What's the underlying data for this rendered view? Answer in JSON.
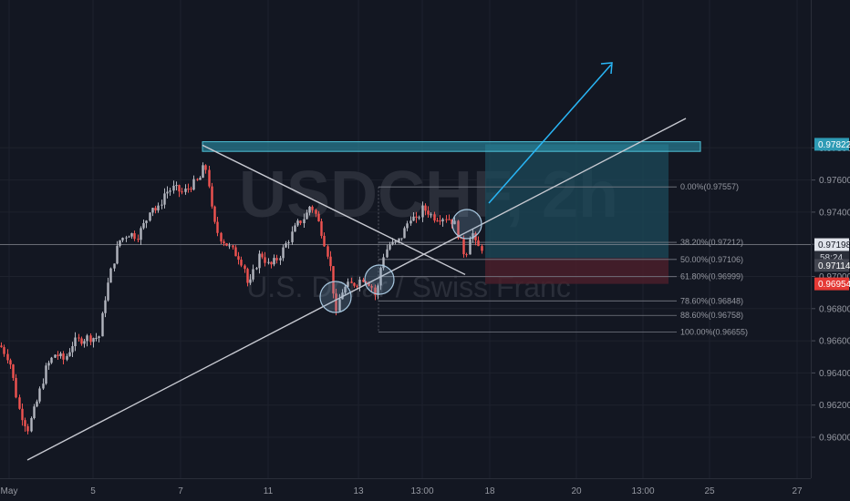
{
  "chart_data": {
    "type": "candlestick",
    "symbol": "USDCHF, 2h",
    "symbol_name": "U.S. Dollar / Swiss Franc",
    "x_ticks": [
      "May",
      "5",
      "7",
      "11",
      "13",
      "13:00",
      "18",
      "20",
      "13:00",
      "25",
      "27"
    ],
    "y_ticks": [
      0.96,
      0.962,
      0.964,
      0.966,
      0.968,
      0.97,
      0.972,
      0.974,
      0.976,
      0.978
    ],
    "ylim": [
      0.9586,
      0.9806
    ],
    "price_labels": {
      "target": "0.97822",
      "current": "0.97198",
      "countdown": "58:24",
      "level": "0.97114",
      "stop": "0.96954"
    },
    "fib_levels": [
      {
        "label": "0.00%(0.97557)",
        "price": 0.97557
      },
      {
        "label": "38.20%(0.97212)",
        "price": 0.97212
      },
      {
        "label": "50.00%(0.97106)",
        "price": 0.97106
      },
      {
        "label": "61.80%(0.96999)",
        "price": 0.96999
      },
      {
        "label": "78.60%(0.96848)",
        "price": 0.96848
      },
      {
        "label": "88.60%(0.96758)",
        "price": 0.96758
      },
      {
        "label": "100.00%(0.96655)",
        "price": 0.96655
      }
    ],
    "resistance_zone": [
      0.97778,
      0.97838
    ],
    "long_position": {
      "entry": 0.97114,
      "target": 0.97822,
      "stop": 0.96954
    },
    "colors": {
      "background": "#131722",
      "up": "#b2b5be",
      "down": "#ef5350",
      "zone": "#2e9bb5",
      "target_fill": "#1c4a5a",
      "stop_fill": "#4a1f2a",
      "arrow": "#29b6f6",
      "line": "#c7c9d1",
      "grid": "#1e222d"
    },
    "waypoints": [
      [
        0,
        0.9657
      ],
      [
        10,
        0.9648
      ],
      [
        20,
        0.9618
      ],
      [
        30,
        0.9605
      ],
      [
        40,
        0.9622
      ],
      [
        50,
        0.9643
      ],
      [
        60,
        0.9652
      ],
      [
        70,
        0.9648
      ],
      [
        80,
        0.9659
      ],
      [
        95,
        0.9662
      ],
      [
        108,
        0.9662
      ],
      [
        115,
        0.9688
      ],
      [
        122,
        0.9705
      ],
      [
        130,
        0.9722
      ],
      [
        140,
        0.9727
      ],
      [
        150,
        0.9725
      ],
      [
        160,
        0.9735
      ],
      [
        165,
        0.9745
      ],
      [
        172,
        0.974
      ],
      [
        180,
        0.9752
      ],
      [
        190,
        0.9755
      ],
      [
        200,
        0.9752
      ],
      [
        210,
        0.9757
      ],
      [
        218,
        0.976
      ],
      [
        224,
        0.977
      ],
      [
        228,
        0.976
      ],
      [
        233,
        0.9735
      ],
      [
        240,
        0.9725
      ],
      [
        248,
        0.972
      ],
      [
        256,
        0.9715
      ],
      [
        262,
        0.9712
      ],
      [
        268,
        0.9705
      ],
      [
        272,
        0.9692
      ],
      [
        276,
        0.97
      ],
      [
        285,
        0.9715
      ],
      [
        295,
        0.9706
      ],
      [
        305,
        0.9712
      ],
      [
        315,
        0.9722
      ],
      [
        325,
        0.9732
      ],
      [
        335,
        0.9738
      ],
      [
        340,
        0.9745
      ],
      [
        346,
        0.9738
      ],
      [
        352,
        0.9728
      ],
      [
        358,
        0.9716
      ],
      [
        363,
        0.9702
      ],
      [
        368,
        0.9675
      ],
      [
        373,
        0.969
      ],
      [
        380,
        0.9694
      ],
      [
        390,
        0.9696
      ],
      [
        397,
        0.9699
      ],
      [
        403,
        0.9697
      ],
      [
        408,
        0.9693
      ],
      [
        412,
        0.9686
      ],
      [
        416,
        0.9703
      ],
      [
        420,
        0.9713
      ],
      [
        426,
        0.972
      ],
      [
        432,
        0.972
      ],
      [
        438,
        0.9723
      ],
      [
        444,
        0.973
      ],
      [
        450,
        0.9738
      ],
      [
        456,
        0.9734
      ],
      [
        462,
        0.9742
      ],
      [
        468,
        0.9741
      ],
      [
        474,
        0.9737
      ],
      [
        482,
        0.9737
      ],
      [
        490,
        0.9737
      ],
      [
        498,
        0.9733
      ],
      [
        504,
        0.9722
      ],
      [
        510,
        0.9712
      ],
      [
        516,
        0.973
      ],
      [
        522,
        0.9718
      ],
      [
        530,
        0.9718
      ]
    ]
  }
}
